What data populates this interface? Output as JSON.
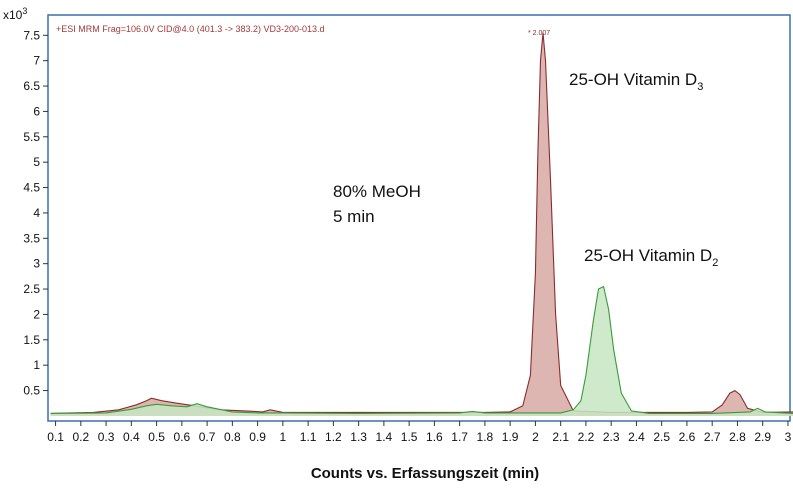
{
  "chart_data": {
    "type": "line",
    "header": "+ESI MRM Frag=106.0V CID@4.0 (401.3 -> 383.2) VD3-200-013.d",
    "y_multiplier_base": "x10",
    "y_multiplier_exp": "3",
    "xlabel": "Counts vs. Erfassungszeit (min)",
    "xlim": [
      0.07,
      3.02
    ],
    "ylim": [
      -0.1,
      7.9
    ],
    "x_ticks": [
      "0.1",
      "0.2",
      "0.3",
      "0.4",
      "0.5",
      "0.6",
      "0.7",
      "0.8",
      "0.9",
      "1",
      "1.1",
      "1.2",
      "1.3",
      "1.4",
      "1.5",
      "1.6",
      "1.7",
      "1.8",
      "1.9",
      "2",
      "2.1",
      "2.2",
      "2.3",
      "2.4",
      "2.5",
      "2.6",
      "2.7",
      "2.8",
      "2.9",
      "3"
    ],
    "y_ticks": [
      "0.5",
      "1",
      "1.5",
      "2",
      "2.5",
      "3",
      "3.5",
      "4",
      "4.5",
      "5",
      "5.5",
      "6",
      "6.5",
      "7",
      "7.5"
    ],
    "peak_label": "* 2.007",
    "annotations": {
      "condition_line1": "80% MeOH",
      "condition_line2": "5 min",
      "vitd3_label": "25-OH Vitamin D",
      "vitd3_sub": "3",
      "vitd2_label": "25-OH Vitamin D",
      "vitd2_sub": "2"
    },
    "series": [
      {
        "color": "#8b2c2c",
        "fill": "#d7a9a5",
        "x": [
          0.08,
          0.25,
          0.35,
          0.42,
          0.46,
          0.48,
          0.52,
          0.58,
          0.65,
          0.75,
          0.85,
          0.92,
          0.95,
          1.0,
          1.2,
          1.5,
          1.8,
          1.9,
          1.95,
          1.98,
          2.0,
          2.01,
          2.02,
          2.03,
          2.04,
          2.06,
          2.08,
          2.1,
          2.15,
          2.3,
          2.6,
          2.7,
          2.74,
          2.77,
          2.79,
          2.81,
          2.84,
          2.9,
          3.02
        ],
        "y": [
          0.05,
          0.07,
          0.12,
          0.22,
          0.3,
          0.35,
          0.3,
          0.25,
          0.2,
          0.12,
          0.1,
          0.08,
          0.12,
          0.07,
          0.07,
          0.07,
          0.07,
          0.08,
          0.2,
          0.8,
          2.8,
          5.2,
          7.0,
          7.55,
          7.0,
          4.6,
          2.0,
          0.6,
          0.1,
          0.07,
          0.07,
          0.08,
          0.22,
          0.45,
          0.5,
          0.42,
          0.15,
          0.07,
          0.08
        ]
      },
      {
        "color": "#3a9a3a",
        "fill": "#c6e6c2",
        "x": [
          0.08,
          0.3,
          0.4,
          0.46,
          0.5,
          0.56,
          0.62,
          0.66,
          0.7,
          0.8,
          0.9,
          1.0,
          1.3,
          1.7,
          1.75,
          1.8,
          2.1,
          2.15,
          2.18,
          2.2,
          2.23,
          2.25,
          2.27,
          2.29,
          2.31,
          2.34,
          2.38,
          2.45,
          2.7,
          2.85,
          2.88,
          2.91,
          3.02
        ],
        "y": [
          0.05,
          0.06,
          0.13,
          0.2,
          0.23,
          0.2,
          0.18,
          0.24,
          0.18,
          0.08,
          0.06,
          0.06,
          0.05,
          0.06,
          0.09,
          0.06,
          0.06,
          0.12,
          0.3,
          0.8,
          1.9,
          2.5,
          2.55,
          2.1,
          1.3,
          0.45,
          0.1,
          0.05,
          0.05,
          0.08,
          0.15,
          0.08,
          0.05
        ]
      }
    ]
  }
}
